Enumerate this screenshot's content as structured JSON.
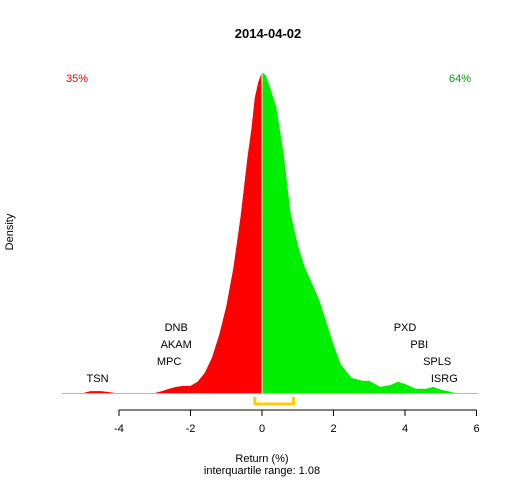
{
  "chart_data": {
    "type": "area",
    "title": "2014-04-02",
    "xlabel": "Return (%)",
    "ylabel": "Density",
    "subtitle": "interquartile range: 1.08",
    "xlim": [
      -5.8,
      6.3
    ],
    "ylim": [
      0,
      1
    ],
    "x_ticks": [
      -4,
      -2,
      0,
      2,
      4,
      6
    ],
    "x_tick_labels": [
      "-4",
      "-2",
      "0",
      "2",
      "4",
      "6"
    ],
    "split_at": 0,
    "negative_percent_label": "35%",
    "positive_percent_label": "64%",
    "interquartile_range": [
      -0.2,
      0.88
    ],
    "density": {
      "x": [
        -5.0,
        -4.8,
        -4.5,
        -4.3,
        -4.1,
        -3.8,
        -3.5,
        -3.0,
        -2.8,
        -2.6,
        -2.4,
        -2.2,
        -2.0,
        -1.8,
        -1.6,
        -1.4,
        -1.2,
        -1.0,
        -0.8,
        -0.6,
        -0.4,
        -0.3,
        -0.2,
        -0.1,
        0.0,
        0.1,
        0.2,
        0.4,
        0.6,
        0.8,
        1.0,
        1.2,
        1.4,
        1.6,
        1.8,
        2.0,
        2.2,
        2.5,
        2.8,
        3.0,
        3.3,
        3.6,
        3.8,
        4.0,
        4.3,
        4.6,
        4.8,
        5.0,
        5.2,
        5.4
      ],
      "y": [
        0.0,
        0.006,
        0.006,
        0.003,
        0.0,
        0.0,
        0.0,
        0.0,
        0.006,
        0.013,
        0.019,
        0.022,
        0.022,
        0.035,
        0.063,
        0.11,
        0.18,
        0.27,
        0.39,
        0.55,
        0.74,
        0.82,
        0.92,
        0.97,
        1.0,
        0.99,
        0.96,
        0.89,
        0.75,
        0.56,
        0.46,
        0.39,
        0.34,
        0.29,
        0.22,
        0.15,
        0.09,
        0.047,
        0.038,
        0.038,
        0.019,
        0.025,
        0.035,
        0.028,
        0.013,
        0.013,
        0.019,
        0.01,
        0.006,
        0.0
      ]
    },
    "annotations": {
      "left": [
        {
          "label": "DNB",
          "x": -2.4
        },
        {
          "label": "AKAM",
          "x": -2.4
        },
        {
          "label": "MPC",
          "x": -2.6
        },
        {
          "label": "TSN",
          "x": -4.6
        }
      ],
      "right": [
        {
          "label": "PXD",
          "x": 4.0
        },
        {
          "label": "PBI",
          "x": 4.4
        },
        {
          "label": "SPLS",
          "x": 4.9
        },
        {
          "label": "ISRG",
          "x": 5.1
        }
      ]
    },
    "colors": {
      "negative": "#ff0000",
      "positive": "#00ee00",
      "iqr_bar": "#ffcc00",
      "negative_label": "#ff0000",
      "positive_label": "#00aa00",
      "divider": "#ffffff",
      "baseline": "#b8b8b8"
    }
  }
}
